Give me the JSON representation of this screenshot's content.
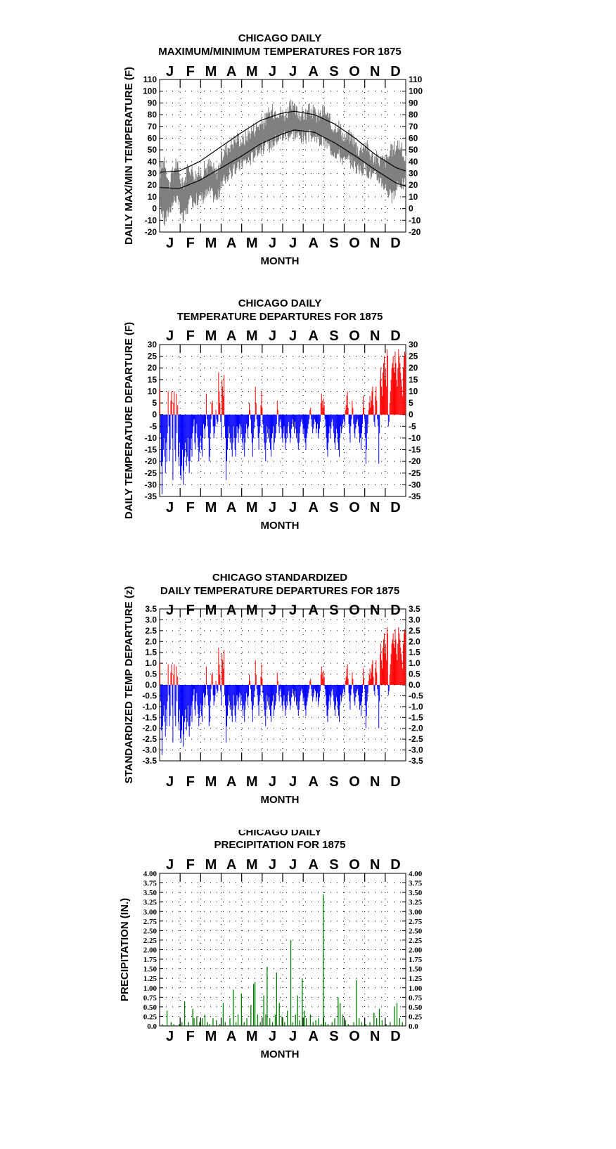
{
  "chart_data": [
    {
      "id": "maxmin",
      "type": "line",
      "title": "CHICAGO DAILY",
      "subtitle": "MAXIMUM/MINIMUM TEMPERATURES FOR 1875",
      "xlabel": "MONTH",
      "ylabel": "DAILY MAX/MIN TEMPERATURE (F)",
      "months": [
        "J",
        "F",
        "M",
        "A",
        "M",
        "J",
        "J",
        "A",
        "S",
        "O",
        "N",
        "D"
      ],
      "ylim": [
        -20,
        110
      ],
      "yticks": [
        "-20",
        "-10",
        "0",
        "10",
        "20",
        "30",
        "40",
        "50",
        "60",
        "70",
        "80",
        "90",
        "100",
        "110"
      ],
      "grid": true,
      "series": [
        {
          "values_desc": "daily max/min observed",
          "color": "#808080",
          "max_points": [
            [
              1,
              30
            ],
            [
              8,
              44
            ],
            [
              15,
              20
            ],
            [
              25,
              40
            ],
            [
              35,
              20
            ],
            [
              45,
              36
            ],
            [
              55,
              28
            ],
            [
              65,
              32
            ],
            [
              75,
              38
            ],
            [
              85,
              30
            ],
            [
              95,
              48
            ],
            [
              105,
              55
            ],
            [
              115,
              60
            ],
            [
              125,
              58
            ],
            [
              135,
              66
            ],
            [
              145,
              70
            ],
            [
              155,
              74
            ],
            [
              165,
              82
            ],
            [
              175,
              84
            ],
            [
              185,
              80
            ],
            [
              195,
              86
            ],
            [
              205,
              82
            ],
            [
              215,
              80
            ],
            [
              225,
              84
            ],
            [
              235,
              78
            ],
            [
              245,
              84
            ],
            [
              255,
              70
            ],
            [
              265,
              72
            ],
            [
              275,
              60
            ],
            [
              285,
              62
            ],
            [
              295,
              50
            ],
            [
              305,
              56
            ],
            [
              315,
              44
            ],
            [
              325,
              42
            ],
            [
              335,
              40
            ],
            [
              345,
              50
            ],
            [
              355,
              56
            ],
            [
              365,
              40
            ]
          ],
          "min_points": [
            [
              1,
              5
            ],
            [
              8,
              -12
            ],
            [
              15,
              0
            ],
            [
              25,
              10
            ],
            [
              35,
              -10
            ],
            [
              45,
              5
            ],
            [
              55,
              8
            ],
            [
              65,
              10
            ],
            [
              75,
              14
            ],
            [
              85,
              8
            ],
            [
              95,
              24
            ],
            [
              105,
              30
            ],
            [
              115,
              34
            ],
            [
              125,
              40
            ],
            [
              135,
              42
            ],
            [
              145,
              50
            ],
            [
              155,
              52
            ],
            [
              165,
              54
            ],
            [
              175,
              60
            ],
            [
              185,
              62
            ],
            [
              195,
              64
            ],
            [
              205,
              62
            ],
            [
              215,
              60
            ],
            [
              225,
              62
            ],
            [
              235,
              58
            ],
            [
              245,
              56
            ],
            [
              255,
              50
            ],
            [
              265,
              46
            ],
            [
              275,
              40
            ],
            [
              285,
              40
            ],
            [
              295,
              32
            ],
            [
              305,
              34
            ],
            [
              315,
              28
            ],
            [
              325,
              26
            ],
            [
              335,
              18
            ],
            [
              345,
              8
            ],
            [
              355,
              22
            ],
            [
              365,
              20
            ]
          ]
        },
        {
          "values_desc": "normal max",
          "color": "#000000",
          "points": [
            [
              1,
              31
            ],
            [
              30,
              32
            ],
            [
              60,
              40
            ],
            [
              90,
              52
            ],
            [
              120,
              64
            ],
            [
              150,
              75
            ],
            [
              180,
              81
            ],
            [
              200,
              83
            ],
            [
              230,
              80
            ],
            [
              260,
              72
            ],
            [
              290,
              60
            ],
            [
              320,
              46
            ],
            [
              350,
              35
            ],
            [
              365,
              32
            ]
          ]
        },
        {
          "values_desc": "normal min",
          "color": "#000000",
          "points": [
            [
              1,
              18
            ],
            [
              30,
              17
            ],
            [
              60,
              24
            ],
            [
              90,
              34
            ],
            [
              120,
              44
            ],
            [
              150,
              55
            ],
            [
              180,
              63
            ],
            [
              200,
              67
            ],
            [
              230,
              65
            ],
            [
              260,
              56
            ],
            [
              290,
              45
            ],
            [
              320,
              33
            ],
            [
              350,
              22
            ],
            [
              365,
              19
            ]
          ]
        }
      ]
    },
    {
      "id": "dep",
      "type": "bar",
      "title": "CHICAGO DAILY",
      "subtitle": "TEMPERATURE DEPARTURES FOR 1875",
      "xlabel": "MONTH",
      "ylabel": "DAILY TEMPERATURE DEPARTURE (F)",
      "months": [
        "J",
        "F",
        "M",
        "A",
        "M",
        "J",
        "J",
        "A",
        "S",
        "O",
        "N",
        "D"
      ],
      "ylim": [
        -35,
        30
      ],
      "yticks": [
        "-35",
        "-30",
        "-25",
        "-20",
        "-15",
        "-10",
        "-5",
        "0",
        "5",
        "10",
        "15",
        "20",
        "25",
        "30"
      ],
      "grid": true,
      "colors": {
        "positive": "#ff0000",
        "negative": "#0000ff"
      },
      "daily": [
        11,
        -8,
        -22,
        -34,
        -20,
        -15,
        -10,
        -18,
        -25,
        -12,
        -20,
        -8,
        10,
        -5,
        -20,
        -15,
        6,
        10,
        -10,
        -28,
        5,
        10,
        -15,
        -20,
        9,
        -8,
        4,
        -18,
        -22,
        -12,
        -26,
        -28,
        -22,
        -15,
        -30,
        -24,
        -18,
        -12,
        -16,
        -22,
        -18,
        -10,
        -20,
        -25,
        -20,
        -15,
        -10,
        -18,
        -8,
        -5,
        -2,
        -12,
        -15,
        -8,
        -4,
        -10,
        -14,
        -20,
        -16,
        -12,
        -9,
        -15,
        -18,
        -10,
        -4,
        -6,
        -10,
        -5,
        9,
        -2,
        -5,
        -10,
        -20,
        -18,
        -8,
        -2,
        5,
        6,
        -5,
        -10,
        -8,
        -5,
        2,
        -2,
        -4,
        -3,
        18,
        10,
        5,
        -3,
        -10,
        15,
        12,
        8,
        17,
        -5,
        -10,
        -28,
        -20,
        -15,
        -10,
        -5,
        -8,
        -12,
        -10,
        -15,
        -18,
        -12,
        -5,
        -10,
        -15,
        -18,
        -10,
        -5,
        -8,
        -12,
        -6,
        -4,
        -10,
        -5,
        -8,
        -12,
        -15,
        -10,
        -18,
        -12,
        -8,
        -4,
        -6,
        -10,
        -5,
        5,
        2,
        -2,
        -8,
        -12,
        -18,
        -10,
        -6,
        -3,
        12,
        5,
        -2,
        -5,
        -10,
        -15,
        -8,
        -5,
        4,
        10,
        3,
        -4,
        -8,
        -12,
        -15,
        -20,
        -12,
        -5,
        -8,
        -10,
        -6,
        -12,
        -15,
        -18,
        -10,
        -8,
        -5,
        -15,
        -12,
        -10,
        -8,
        -4,
        6,
        2,
        -5,
        -8,
        -3,
        -2,
        -6,
        -10,
        -12,
        -8,
        -5,
        -10,
        -15,
        -12,
        -8,
        -10,
        -5,
        -3,
        -8,
        -12,
        -10,
        -6,
        -4,
        -2,
        -5,
        -8,
        -3,
        -6,
        -10,
        -8,
        -12,
        -15,
        -12,
        -8,
        -5,
        -3,
        -2,
        -4,
        -8,
        -6,
        -10,
        -12,
        -15,
        -10,
        -8,
        -6,
        -4,
        -2,
        2,
        3,
        -2,
        -5,
        -8,
        -6,
        -4,
        -2,
        -3,
        -8,
        -6,
        -4,
        -10,
        -8,
        -6,
        -3,
        5,
        9,
        6,
        3,
        7,
        4,
        -2,
        -5,
        -10,
        -15,
        -18,
        -12,
        -8,
        -5,
        -10,
        -6,
        -3,
        -2,
        -5,
        -8,
        -12,
        -15,
        -10,
        -6,
        -8,
        -12,
        -15,
        -18,
        -10,
        -5,
        -8,
        -6,
        -4,
        -2,
        -3,
        -5,
        2,
        4,
        8,
        10,
        3,
        -4,
        -8,
        -12,
        -5,
        -2,
        6,
        3,
        -4,
        -8,
        -10,
        -6,
        -4,
        -3,
        -2,
        -5,
        -8,
        -12,
        -10,
        -15,
        -8,
        -4,
        8,
        3,
        -2,
        -10,
        -21,
        -15,
        -8,
        -4,
        2,
        5,
        8,
        3,
        6,
        10,
        12,
        4,
        -3,
        -5,
        8,
        12,
        6,
        -2,
        -5,
        -21,
        -8,
        15,
        20,
        12,
        8,
        18,
        22,
        25,
        15,
        20,
        12,
        28,
        25,
        -5,
        -3,
        5,
        10,
        15,
        20,
        22,
        25,
        20,
        18,
        27,
        22,
        15,
        12,
        20,
        28,
        25,
        22,
        18,
        15,
        12,
        8,
        20,
        25,
        27,
        26
      ],
      "daily_note": "approximate values read from figure"
    },
    {
      "id": "std",
      "type": "bar",
      "title": "CHICAGO STANDARDIZED",
      "subtitle": "DAILY TEMPERATURE DEPARTURES FOR 1875",
      "xlabel": "",
      "ylabel": "STANDARDIZED TEMP DEPARTURE (z)",
      "months": [
        "J",
        "F",
        "M",
        "A",
        "M",
        "J",
        "J",
        "A",
        "S",
        "O",
        "N",
        "D"
      ],
      "bottom_label": "MONTH",
      "ylim": [
        -3.5,
        3.5
      ],
      "yticks": [
        "-3.5",
        "-3.0",
        "-2.5",
        "-2.0",
        "-1.5",
        "-1.0",
        "-0.5",
        "0.0",
        "0.5",
        "1.0",
        "1.5",
        "2.0",
        "2.5",
        "3.0",
        "3.5"
      ],
      "grid": true,
      "colors": {
        "positive": "#ff0000",
        "negative": "#0000ff"
      }
    },
    {
      "id": "precip",
      "type": "bar",
      "title": "CHICAGO DAILY",
      "subtitle": "PRECIPITATION FOR 1875",
      "xlabel": "MONTH",
      "ylabel": "PRECIPITATION (IN.)",
      "months": [
        "J",
        "F",
        "M",
        "A",
        "M",
        "J",
        "J",
        "A",
        "S",
        "O",
        "N",
        "D"
      ],
      "ylim": [
        0,
        4
      ],
      "yticks": [
        "0.0",
        "0.25",
        "0.50",
        "0.75",
        "1.00",
        "1.25",
        "1.50",
        "1.75",
        "2.00",
        "2.25",
        "2.50",
        "2.75",
        "3.00",
        "3.25",
        "3.50",
        "3.75",
        "4.00"
      ],
      "grid": true,
      "colors": {
        "bar": "#008000"
      },
      "events": [
        [
          5,
          0.05
        ],
        [
          12,
          0.4
        ],
        [
          18,
          0.1
        ],
        [
          22,
          0.05
        ],
        [
          30,
          0.05
        ],
        [
          34,
          0.1
        ],
        [
          38,
          0.65
        ],
        [
          44,
          0.1
        ],
        [
          50,
          0.45
        ],
        [
          52,
          0.2
        ],
        [
          56,
          0.25
        ],
        [
          60,
          0.1
        ],
        [
          64,
          0.2
        ],
        [
          68,
          0.3
        ],
        [
          72,
          0.1
        ],
        [
          75,
          0.05
        ],
        [
          80,
          0.2
        ],
        [
          85,
          0.15
        ],
        [
          90,
          0.05
        ],
        [
          95,
          0.6
        ],
        [
          98,
          0.1
        ],
        [
          105,
          0.2
        ],
        [
          110,
          0.95
        ],
        [
          114,
          0.1
        ],
        [
          117,
          0.3
        ],
        [
          122,
          0.85
        ],
        [
          126,
          0.1
        ],
        [
          130,
          0.2
        ],
        [
          136,
          0.55
        ],
        [
          140,
          1.1
        ],
        [
          142,
          1.15
        ],
        [
          146,
          0.3
        ],
        [
          150,
          0.1
        ],
        [
          155,
          0.8
        ],
        [
          158,
          0.3
        ],
        [
          160,
          1.55
        ],
        [
          164,
          0.2
        ],
        [
          168,
          0.1
        ],
        [
          172,
          0.3
        ],
        [
          174,
          1.4
        ],
        [
          178,
          0.6
        ],
        [
          182,
          0.25
        ],
        [
          186,
          0.1
        ],
        [
          190,
          0.4
        ],
        [
          195,
          2.25
        ],
        [
          198,
          0.1
        ],
        [
          202,
          0.3
        ],
        [
          205,
          0.8
        ],
        [
          208,
          0.15
        ],
        [
          212,
          1.25
        ],
        [
          215,
          0.4
        ],
        [
          218,
          0.2
        ],
        [
          224,
          0.3
        ],
        [
          228,
          0.1
        ],
        [
          232,
          0.15
        ],
        [
          236,
          0.2
        ],
        [
          240,
          0.05
        ],
        [
          243,
          3.45
        ],
        [
          246,
          0.1
        ],
        [
          250,
          0.05
        ],
        [
          256,
          0.1
        ],
        [
          260,
          0.2
        ],
        [
          265,
          0.75
        ],
        [
          268,
          0.6
        ],
        [
          272,
          0.3
        ],
        [
          276,
          0.15
        ],
        [
          280,
          0.05
        ],
        [
          288,
          0.1
        ],
        [
          292,
          1.2
        ],
        [
          296,
          0.2
        ],
        [
          300,
          0.1
        ],
        [
          306,
          0.05
        ],
        [
          312,
          0.1
        ],
        [
          318,
          0.35
        ],
        [
          322,
          0.2
        ],
        [
          326,
          0.45
        ],
        [
          330,
          0.15
        ],
        [
          336,
          0.05
        ],
        [
          342,
          0.1
        ],
        [
          348,
          0.5
        ],
        [
          352,
          0.6
        ],
        [
          356,
          0.2
        ],
        [
          360,
          0.1
        ]
      ]
    }
  ]
}
